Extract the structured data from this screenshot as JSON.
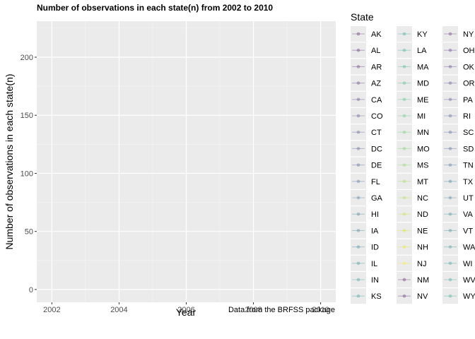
{
  "chart_data": {
    "type": "line",
    "title": "Number of observations in each state(n) from 2002 to 2010",
    "xlabel": "Year",
    "ylabel": "Number of observations in each state(n)",
    "caption": "Data from the BRFSS package",
    "legend_title": "State",
    "x_ticks": [
      2002,
      2004,
      2006,
      2008,
      2010
    ],
    "y_ticks": [
      0,
      50,
      100,
      150,
      200
    ],
    "xlim": [
      2001.55,
      2010.45
    ],
    "ylim": [
      -11,
      231
    ],
    "grid": true,
    "legend_position": "right",
    "x": [
      2002,
      2003,
      2004,
      2005,
      2006,
      2007,
      2008,
      2009,
      2010
    ],
    "series": [
      {
        "name": "AK",
        "color": "#440154",
        "values": [
          null,
          null,
          null,
          null,
          null,
          null,
          null,
          null,
          null
        ]
      },
      {
        "name": "AL",
        "color": "#46085C",
        "values": [
          null,
          null,
          null,
          null,
          null,
          null,
          null,
          null,
          null
        ]
      },
      {
        "name": "AR",
        "color": "#481568",
        "values": [
          null,
          null,
          null,
          null,
          null,
          null,
          null,
          null,
          null
        ]
      },
      {
        "name": "AZ",
        "color": "#482072",
        "values": [
          null,
          null,
          null,
          null,
          null,
          null,
          null,
          null,
          null
        ]
      },
      {
        "name": "CA",
        "color": "#472A7A",
        "values": [
          null,
          null,
          null,
          null,
          null,
          null,
          null,
          null,
          null
        ]
      },
      {
        "name": "CO",
        "color": "#453581",
        "values": [
          null,
          null,
          null,
          null,
          null,
          null,
          null,
          null,
          null
        ]
      },
      {
        "name": "CT",
        "color": "#433E85",
        "values": [
          null,
          null,
          null,
          null,
          null,
          null,
          null,
          null,
          null
        ]
      },
      {
        "name": "DC",
        "color": "#3F4889",
        "values": [
          null,
          null,
          null,
          null,
          null,
          null,
          null,
          null,
          null
        ]
      },
      {
        "name": "DE",
        "color": "#3B518B",
        "values": [
          null,
          null,
          null,
          null,
          null,
          null,
          null,
          null,
          null
        ]
      },
      {
        "name": "FL",
        "color": "#375A8C",
        "values": [
          null,
          null,
          null,
          null,
          null,
          null,
          null,
          null,
          null
        ]
      },
      {
        "name": "GA",
        "color": "#33638D",
        "values": [
          null,
          null,
          null,
          null,
          null,
          null,
          null,
          null,
          null
        ]
      },
      {
        "name": "HI",
        "color": "#2F6B8E",
        "values": [
          null,
          null,
          null,
          null,
          null,
          null,
          null,
          null,
          null
        ]
      },
      {
        "name": "IA",
        "color": "#2C738E",
        "values": [
          null,
          null,
          null,
          null,
          null,
          null,
          null,
          null,
          null
        ]
      },
      {
        "name": "ID",
        "color": "#297B8E",
        "values": [
          null,
          null,
          null,
          null,
          null,
          null,
          null,
          null,
          null
        ]
      },
      {
        "name": "IL",
        "color": "#26828E",
        "values": [
          null,
          null,
          null,
          null,
          null,
          null,
          null,
          null,
          null
        ]
      },
      {
        "name": "IN",
        "color": "#238A8D",
        "values": [
          null,
          null,
          null,
          null,
          null,
          null,
          null,
          null,
          null
        ]
      },
      {
        "name": "KS",
        "color": "#21918C",
        "values": [
          null,
          null,
          null,
          null,
          null,
          null,
          null,
          null,
          null
        ]
      },
      {
        "name": "KY",
        "color": "#1F998A",
        "values": [
          null,
          null,
          null,
          null,
          null,
          null,
          null,
          null,
          null
        ]
      },
      {
        "name": "LA",
        "color": "#20A386",
        "values": [
          null,
          null,
          null,
          null,
          null,
          null,
          null,
          null,
          null
        ]
      },
      {
        "name": "MA",
        "color": "#25AB82",
        "values": [
          null,
          null,
          null,
          null,
          null,
          null,
          null,
          null,
          null
        ]
      },
      {
        "name": "MD",
        "color": "#2EB37C",
        "values": [
          null,
          null,
          null,
          null,
          null,
          null,
          null,
          null,
          null
        ]
      },
      {
        "name": "ME",
        "color": "#3ABA76",
        "values": [
          null,
          null,
          null,
          null,
          null,
          null,
          null,
          null,
          null
        ]
      },
      {
        "name": "MI",
        "color": "#48C16E",
        "values": [
          null,
          null,
          null,
          null,
          null,
          null,
          null,
          null,
          null
        ]
      },
      {
        "name": "MN",
        "color": "#58C765",
        "values": [
          null,
          null,
          null,
          null,
          null,
          null,
          null,
          null,
          null
        ]
      },
      {
        "name": "MO",
        "color": "#6ACD5B",
        "values": [
          null,
          null,
          null,
          null,
          null,
          null,
          null,
          null,
          null
        ]
      },
      {
        "name": "MS",
        "color": "#7ED34F",
        "values": [
          null,
          null,
          null,
          null,
          null,
          null,
          null,
          null,
          null
        ]
      },
      {
        "name": "MT",
        "color": "#92D742",
        "values": [
          null,
          null,
          null,
          null,
          null,
          null,
          null,
          null,
          null
        ]
      },
      {
        "name": "NC",
        "color": "#A8DB34",
        "values": [
          null,
          null,
          null,
          null,
          null,
          null,
          null,
          null,
          null
        ]
      },
      {
        "name": "ND",
        "color": "#BEDF26",
        "values": [
          null,
          null,
          null,
          null,
          null,
          null,
          null,
          null,
          null
        ]
      },
      {
        "name": "NE",
        "color": "#D4E21A",
        "values": [
          null,
          null,
          null,
          null,
          null,
          null,
          null,
          null,
          null
        ]
      },
      {
        "name": "NH",
        "color": "#E9E51A",
        "values": [
          null,
          null,
          null,
          null,
          null,
          null,
          null,
          null,
          null
        ]
      },
      {
        "name": "NJ",
        "color": "#FDE725",
        "values": [
          null,
          null,
          null,
          null,
          null,
          null,
          null,
          null,
          null
        ]
      },
      {
        "name": "NM",
        "color": "#440154",
        "values": [
          null,
          null,
          null,
          null,
          null,
          null,
          null,
          null,
          null
        ]
      },
      {
        "name": "NV",
        "color": "#46085C",
        "values": [
          null,
          null,
          null,
          null,
          null,
          null,
          null,
          null,
          null
        ]
      },
      {
        "name": "NY",
        "color": "#481568",
        "values": [
          null,
          null,
          null,
          null,
          null,
          null,
          null,
          null,
          null
        ]
      },
      {
        "name": "OH",
        "color": "#482072",
        "values": [
          null,
          null,
          null,
          null,
          null,
          null,
          null,
          null,
          null
        ]
      },
      {
        "name": "OK",
        "color": "#472A7A",
        "values": [
          null,
          null,
          null,
          null,
          null,
          null,
          null,
          null,
          null
        ]
      },
      {
        "name": "OR",
        "color": "#453581",
        "values": [
          null,
          null,
          null,
          null,
          null,
          null,
          null,
          null,
          null
        ]
      },
      {
        "name": "PA",
        "color": "#433E85",
        "values": [
          null,
          null,
          null,
          null,
          null,
          null,
          null,
          null,
          null
        ]
      },
      {
        "name": "RI",
        "color": "#3F4889",
        "values": [
          null,
          null,
          null,
          null,
          null,
          null,
          null,
          null,
          null
        ]
      },
      {
        "name": "SC",
        "color": "#3B518B",
        "values": [
          null,
          null,
          null,
          null,
          null,
          null,
          null,
          null,
          null
        ]
      },
      {
        "name": "SD",
        "color": "#375A8C",
        "values": [
          null,
          null,
          null,
          null,
          null,
          null,
          null,
          null,
          null
        ]
      },
      {
        "name": "TN",
        "color": "#33638D",
        "values": [
          null,
          null,
          null,
          null,
          null,
          null,
          null,
          null,
          null
        ]
      },
      {
        "name": "TX",
        "color": "#2F6B8E",
        "values": [
          null,
          null,
          null,
          null,
          null,
          null,
          null,
          null,
          null
        ]
      },
      {
        "name": "UT",
        "color": "#2C738E",
        "values": [
          null,
          null,
          null,
          null,
          null,
          null,
          null,
          null,
          null
        ]
      },
      {
        "name": "VA",
        "color": "#297B8E",
        "values": [
          null,
          null,
          null,
          null,
          null,
          null,
          null,
          null,
          null
        ]
      },
      {
        "name": "VT",
        "color": "#26828E",
        "values": [
          null,
          null,
          null,
          null,
          null,
          null,
          null,
          null,
          null
        ]
      },
      {
        "name": "WA",
        "color": "#238A8D",
        "values": [
          null,
          null,
          null,
          null,
          null,
          null,
          null,
          null,
          null
        ]
      },
      {
        "name": "WI",
        "color": "#21918C",
        "values": [
          null,
          null,
          null,
          null,
          null,
          null,
          null,
          null,
          null
        ]
      },
      {
        "name": "WV",
        "color": "#1F998A",
        "values": [
          null,
          null,
          null,
          null,
          null,
          null,
          null,
          null,
          null
        ]
      },
      {
        "name": "WY",
        "color": "#20A386",
        "values": [
          null,
          null,
          null,
          null,
          null,
          null,
          null,
          null,
          null
        ]
      }
    ]
  }
}
